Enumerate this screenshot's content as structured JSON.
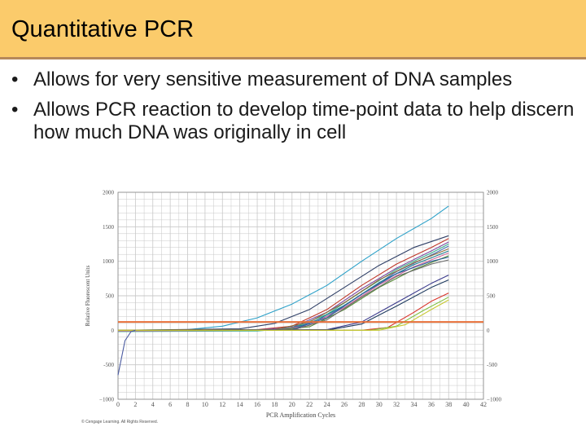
{
  "slide": {
    "title": "Quantitative PCR",
    "bullets": [
      "Allows for very sensitive measurement of DNA samples",
      "Allows PCR reaction to develop time-point data to help discern how much DNA was originally in cell"
    ],
    "bullet_glyph": "•"
  },
  "colors": {
    "title_bar": "#fbcb6b",
    "title_rule": "#b5885a",
    "threshold": "#e8703a",
    "grid": "#c8c8c8"
  },
  "chart_data": {
    "type": "line",
    "title": "",
    "xlabel": "PCR Amplification Cycles",
    "ylabel": "Relative Fluorescent Units",
    "xlim": [
      0,
      42
    ],
    "ylim": [
      -1000,
      2000
    ],
    "x_ticks": [
      0,
      2,
      4,
      6,
      8,
      10,
      12,
      14,
      16,
      18,
      20,
      22,
      24,
      26,
      28,
      30,
      32,
      34,
      36,
      38,
      40,
      42
    ],
    "y_ticks": [
      2000,
      1500,
      1000,
      500,
      0,
      -500,
      -1000
    ],
    "y_tick_labels": [
      "2000",
      "1500",
      "1000",
      "500",
      "0",
      "-500",
      "−1000"
    ],
    "right_y_tick_labels": [
      "2000",
      "1500",
      "1000",
      "500",
      "0",
      "-500",
      "−1000"
    ],
    "threshold": 120,
    "grid": true,
    "credit": "© Cengage Learning. All Rights Reserved.",
    "series": [
      {
        "color": "#2ba0c8",
        "x": [
          0,
          8,
          12,
          16,
          20,
          24,
          28,
          32,
          36,
          38
        ],
        "y": [
          0,
          10,
          60,
          180,
          380,
          650,
          1000,
          1330,
          1620,
          1800
        ]
      },
      {
        "color": "#2f3f66",
        "x": [
          0,
          14,
          18,
          22,
          26,
          30,
          34,
          38
        ],
        "y": [
          0,
          20,
          100,
          300,
          620,
          940,
          1200,
          1370
        ]
      },
      {
        "color": "#c0392b",
        "x": [
          0,
          16,
          20,
          24,
          28,
          32,
          36,
          38
        ],
        "y": [
          0,
          10,
          60,
          300,
          650,
          960,
          1200,
          1330
        ]
      },
      {
        "color": "#7c4aa0",
        "x": [
          0,
          16,
          20,
          24,
          28,
          32,
          36,
          38
        ],
        "y": [
          0,
          5,
          40,
          260,
          600,
          900,
          1150,
          1280
        ]
      },
      {
        "color": "#3bb08f",
        "x": [
          0,
          16,
          20,
          24,
          28,
          32,
          36,
          38
        ],
        "y": [
          -20,
          -10,
          30,
          230,
          560,
          880,
          1120,
          1250
        ]
      },
      {
        "color": "#4a6fb5",
        "x": [
          0,
          16,
          20,
          24,
          28,
          32,
          36,
          38
        ],
        "y": [
          0,
          0,
          20,
          200,
          520,
          850,
          1090,
          1220
        ]
      },
      {
        "color": "#8e6a3a",
        "x": [
          0,
          18,
          22,
          26,
          30,
          34,
          38
        ],
        "y": [
          0,
          10,
          120,
          400,
          730,
          980,
          1180
        ]
      },
      {
        "color": "#1f7a8c",
        "x": [
          0,
          18,
          22,
          26,
          30,
          34,
          38
        ],
        "y": [
          0,
          0,
          90,
          360,
          690,
          950,
          1150
        ]
      },
      {
        "color": "#d46a9a",
        "x": [
          0,
          18,
          22,
          26,
          30,
          34,
          38
        ],
        "y": [
          -10,
          0,
          70,
          330,
          660,
          920,
          1120
        ]
      },
      {
        "color": "#5b8c3a",
        "x": [
          0,
          18,
          22,
          26,
          30,
          34,
          38
        ],
        "y": [
          0,
          0,
          50,
          300,
          620,
          880,
          1080
        ]
      },
      {
        "color": "#2d5fa0",
        "x": [
          0,
          20,
          24,
          28,
          32,
          36,
          38
        ],
        "y": [
          0,
          10,
          180,
          520,
          820,
          1000,
          1060
        ]
      },
      {
        "color": "#6b6b6b",
        "x": [
          0,
          20,
          24,
          28,
          32,
          36,
          38
        ],
        "y": [
          0,
          0,
          150,
          480,
          780,
          960,
          1020
        ]
      },
      {
        "color": "#3a3a8c",
        "x": [
          0,
          24,
          28,
          32,
          36,
          38
        ],
        "y": [
          0,
          10,
          120,
          400,
          680,
          800
        ]
      },
      {
        "color": "#1e3a5f",
        "x": [
          0,
          24,
          28,
          32,
          36,
          38
        ],
        "y": [
          0,
          0,
          90,
          350,
          620,
          730
        ]
      },
      {
        "color": "#d9342b",
        "x": [
          0,
          28,
          31,
          34,
          36,
          38
        ],
        "y": [
          0,
          0,
          40,
          260,
          420,
          540
        ]
      },
      {
        "color": "#7fbf3f",
        "x": [
          0,
          29,
          32,
          35,
          38
        ],
        "y": [
          0,
          0,
          60,
          280,
          480
        ]
      },
      {
        "color": "#c8c832",
        "x": [
          0,
          30,
          33,
          36,
          38
        ],
        "y": [
          0,
          0,
          80,
          300,
          440
        ]
      },
      {
        "color": "#4a5aa0",
        "x": [
          0,
          0.4,
          0.8,
          1.5,
          2
        ],
        "y": [
          -650,
          -400,
          -150,
          -20,
          0
        ]
      }
    ]
  }
}
